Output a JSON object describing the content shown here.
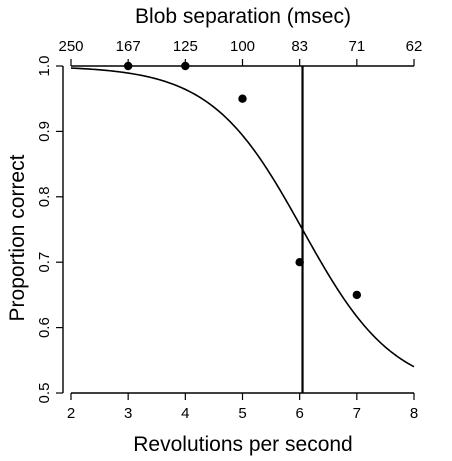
{
  "chart_data": {
    "type": "scatter",
    "xlabel": "Revolutions per second",
    "ylabel": "Proportion correct",
    "top_axis_label": "Blob separation (msec)",
    "xlim": [
      2,
      8
    ],
    "ylim": [
      0.5,
      1.0
    ],
    "x_ticks": [
      2,
      3,
      4,
      5,
      6,
      7,
      8
    ],
    "y_ticks": [
      0.5,
      0.6,
      0.7,
      0.8,
      0.9,
      1.0
    ],
    "y_tick_labels": [
      "0.5",
      "0.6",
      "0.7",
      "0.8",
      "0.9",
      "1.0"
    ],
    "top_ticks": [
      {
        "label": "250",
        "x": 2
      },
      {
        "label": "167",
        "x": 3
      },
      {
        "label": "125",
        "x": 4
      },
      {
        "label": "100",
        "x": 5
      },
      {
        "label": "83",
        "x": 6
      },
      {
        "label": "71",
        "x": 7
      },
      {
        "label": "62",
        "x": 8
      }
    ],
    "points": [
      {
        "x": 3,
        "y": 1.0
      },
      {
        "x": 4,
        "y": 1.0
      },
      {
        "x": 5,
        "y": 0.95
      },
      {
        "x": 6,
        "y": 0.7
      },
      {
        "x": 7,
        "y": 0.65
      }
    ],
    "fit_curve": {
      "type": "logistic",
      "lower": 0.5,
      "upper": 1.0,
      "midpoint": 6.05,
      "slope": 1.25
    },
    "threshold_x": 6.05,
    "grid": false,
    "legend": "none"
  }
}
